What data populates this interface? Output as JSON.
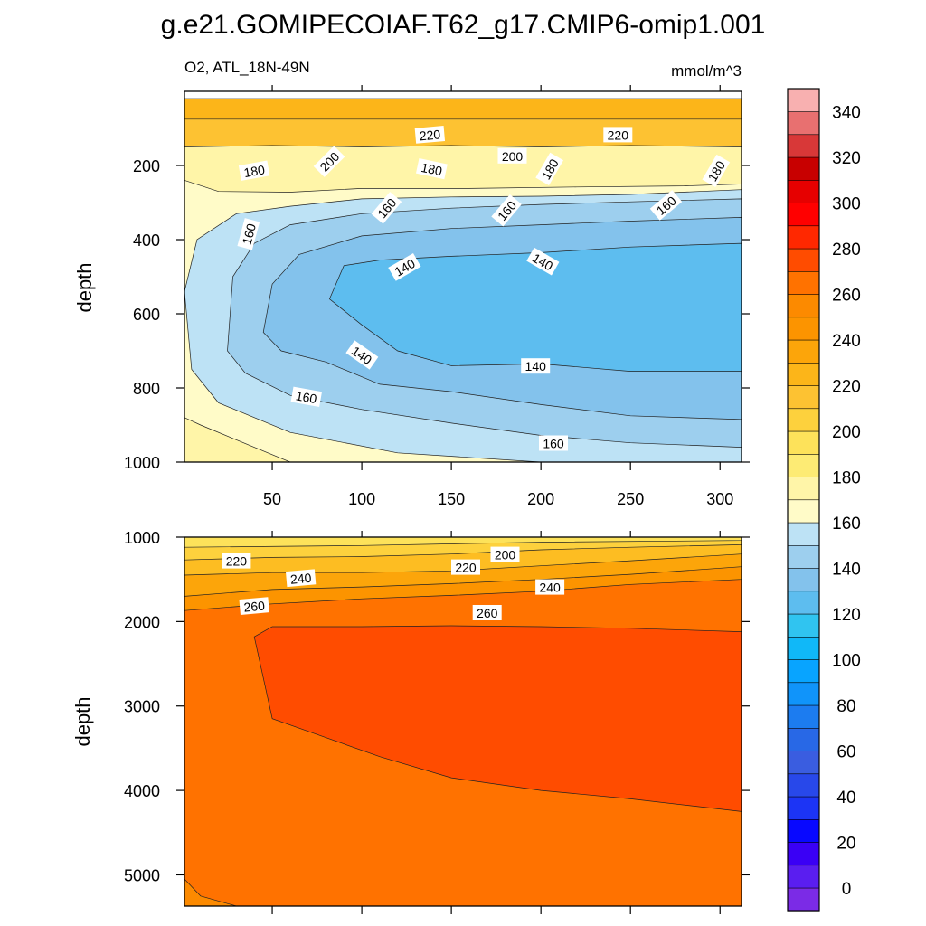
{
  "chart_data": {
    "type": "contour",
    "title": "g.e21.GOMIPECOIAF.T62_g17.CMIP6-omip1.001",
    "subtitle_left": "O2, ATL_18N-49N",
    "subtitle_right": "mmol/m^3",
    "ylabel": "depth",
    "x_ticks": [
      50,
      100,
      150,
      200,
      250,
      300
    ],
    "xlim": [
      1,
      312
    ],
    "panels": [
      {
        "name": "upper",
        "ylim": [
          0,
          1000
        ],
        "y_ticks": [
          200,
          400,
          600,
          800,
          1000
        ],
        "regions": [
          {
            "level": 180,
            "color": "#fff5a8",
            "points": [
              [
                1,
                20
              ],
              [
                312,
                20
              ],
              [
                312,
                1000
              ],
              [
                1,
                1000
              ]
            ]
          },
          {
            "level": 170,
            "color": "#fffbc8",
            "points": [
              [
                1,
                240
              ],
              [
                20,
                270
              ],
              [
                60,
                272
              ],
              [
                100,
                262
              ],
              [
                160,
                262
              ],
              [
                220,
                258
              ],
              [
                280,
                255
              ],
              [
                312,
                250
              ],
              [
                312,
                1000
              ],
              [
                60,
                1000
              ],
              [
                10,
                900
              ],
              [
                1,
                880
              ]
            ]
          },
          {
            "level": 160,
            "color": "#bde2f5",
            "points": [
              [
                1,
                540
              ],
              [
                8,
                400
              ],
              [
                30,
                330
              ],
              [
                60,
                310
              ],
              [
                100,
                290
              ],
              [
                150,
                285
              ],
              [
                200,
                283
              ],
              [
                250,
                278
              ],
              [
                312,
                265
              ],
              [
                312,
                1000
              ],
              [
                200,
                1000
              ],
              [
                120,
                975
              ],
              [
                60,
                920
              ],
              [
                20,
                840
              ],
              [
                5,
                750
              ]
            ]
          },
          {
            "level": 150,
            "color": "#9dcfee",
            "points": [
              [
                25,
                700
              ],
              [
                28,
                500
              ],
              [
                40,
                410
              ],
              [
                60,
                360
              ],
              [
                100,
                330
              ],
              [
                150,
                315
              ],
              [
                200,
                305
              ],
              [
                250,
                298
              ],
              [
                312,
                290
              ],
              [
                312,
                960
              ],
              [
                250,
                948
              ],
              [
                200,
                928
              ],
              [
                150,
                895
              ],
              [
                100,
                858
              ],
              [
                60,
                820
              ],
              [
                35,
                760
              ]
            ]
          },
          {
            "level": 140,
            "color": "#83c2ec",
            "points": [
              [
                45,
                650
              ],
              [
                50,
                520
              ],
              [
                65,
                440
              ],
              [
                100,
                390
              ],
              [
                150,
                370
              ],
              [
                200,
                360
              ],
              [
                250,
                350
              ],
              [
                312,
                340
              ],
              [
                312,
                885
              ],
              [
                250,
                875
              ],
              [
                200,
                845
              ],
              [
                150,
                810
              ],
              [
                110,
                790
              ],
              [
                80,
                730
              ],
              [
                55,
                700
              ]
            ]
          },
          {
            "level": 130,
            "color": "#5dbdef",
            "points": [
              [
                82,
                560
              ],
              [
                90,
                470
              ],
              [
                110,
                455
              ],
              [
                150,
                445
              ],
              [
                200,
                435
              ],
              [
                250,
                420
              ],
              [
                312,
                410
              ],
              [
                312,
                755
              ],
              [
                250,
                755
              ],
              [
                200,
                735
              ],
              [
                150,
                740
              ],
              [
                120,
                700
              ],
              [
                100,
                630
              ]
            ]
          },
          {
            "level": 220,
            "color": "#fdc232",
            "points": [
              [
                1,
                20
              ],
              [
                312,
                20
              ],
              [
                312,
                150
              ],
              [
                250,
                146
              ],
              [
                200,
                150
              ],
              [
                150,
                146
              ],
              [
                100,
                150
              ],
              [
                50,
                146
              ],
              [
                1,
                150
              ]
            ]
          },
          {
            "level": 225,
            "color": "#fcb519",
            "points": [
              [
                1,
                20
              ],
              [
                312,
                20
              ],
              [
                312,
                75
              ],
              [
                1,
                75
              ]
            ]
          }
        ],
        "labels": [
          {
            "text": "220",
            "x": 138,
            "y": 118,
            "angle": -5
          },
          {
            "text": "220",
            "x": 243,
            "y": 118,
            "angle": 0
          },
          {
            "text": "200",
            "x": 82,
            "y": 190,
            "angle": -45
          },
          {
            "text": "200",
            "x": 184,
            "y": 175,
            "angle": 0
          },
          {
            "text": "180",
            "x": 40,
            "y": 215,
            "angle": -10
          },
          {
            "text": "180",
            "x": 139,
            "y": 210,
            "angle": 12
          },
          {
            "text": "180",
            "x": 205,
            "y": 210,
            "angle": -60
          },
          {
            "text": "180",
            "x": 298,
            "y": 215,
            "angle": -60
          },
          {
            "text": "160",
            "x": 37,
            "y": 385,
            "angle": -75
          },
          {
            "text": "160",
            "x": 114,
            "y": 315,
            "angle": -50
          },
          {
            "text": "160",
            "x": 181,
            "y": 322,
            "angle": -50
          },
          {
            "text": "160",
            "x": 270,
            "y": 308,
            "angle": -40
          },
          {
            "text": "140",
            "x": 124,
            "y": 475,
            "angle": -30
          },
          {
            "text": "140",
            "x": 201,
            "y": 460,
            "angle": 30
          },
          {
            "text": "140",
            "x": 100,
            "y": 712,
            "angle": 35
          },
          {
            "text": "140",
            "x": 197,
            "y": 742,
            "angle": 0
          },
          {
            "text": "160",
            "x": 69,
            "y": 825,
            "angle": 10
          },
          {
            "text": "160",
            "x": 207,
            "y": 950,
            "angle": 0
          }
        ]
      },
      {
        "name": "lower",
        "ylim": [
          1000,
          5370
        ],
        "y_ticks": [
          1000,
          2000,
          3000,
          4000,
          5000
        ],
        "regions": [
          {
            "level": 265,
            "color": "#ff7200",
            "points": [
              [
                1,
                1000
              ],
              [
                312,
                1000
              ],
              [
                312,
                5370
              ],
              [
                1,
                5370
              ]
            ]
          },
          {
            "level": 250,
            "color": "#fc9400",
            "points": [
              [
                1,
                1000
              ],
              [
                312,
                1000
              ],
              [
                312,
                1500
              ],
              [
                250,
                1560
              ],
              [
                200,
                1640
              ],
              [
                150,
                1690
              ],
              [
                100,
                1730
              ],
              [
                50,
                1790
              ],
              [
                1,
                1870
              ]
            ]
          },
          {
            "level": 240,
            "color": "#fca50a",
            "points": [
              [
                1,
                1000
              ],
              [
                312,
                1000
              ],
              [
                312,
                1350
              ],
              [
                250,
                1440
              ],
              [
                200,
                1500
              ],
              [
                150,
                1550
              ],
              [
                100,
                1590
              ],
              [
                50,
                1620
              ],
              [
                1,
                1700
              ]
            ]
          },
          {
            "level": 230,
            "color": "#fdbd22",
            "points": [
              [
                1,
                1000
              ],
              [
                312,
                1000
              ],
              [
                312,
                1200
              ],
              [
                250,
                1280
              ],
              [
                200,
                1340
              ],
              [
                150,
                1400
              ],
              [
                100,
                1420
              ],
              [
                50,
                1420
              ],
              [
                1,
                1450
              ]
            ]
          },
          {
            "level": 215,
            "color": "#fdd13d",
            "points": [
              [
                1,
                1000
              ],
              [
                312,
                1000
              ],
              [
                312,
                1090
              ],
              [
                250,
                1120
              ],
              [
                200,
                1150
              ],
              [
                150,
                1200
              ],
              [
                100,
                1230
              ],
              [
                50,
                1240
              ],
              [
                1,
                1270
              ]
            ]
          },
          {
            "level": 205,
            "color": "#fde25a",
            "points": [
              [
                1,
                1000
              ],
              [
                312,
                1000
              ],
              [
                312,
                1040
              ],
              [
                200,
                1060
              ],
              [
                100,
                1100
              ],
              [
                1,
                1120
              ]
            ]
          },
          {
            "level": 270,
            "color": "#ff4c00",
            "points": [
              [
                40,
                2180
              ],
              [
                50,
                2060
              ],
              [
                100,
                2060
              ],
              [
                150,
                2050
              ],
              [
                200,
                2060
              ],
              [
                250,
                2080
              ],
              [
                312,
                2120
              ],
              [
                312,
                4250
              ],
              [
                250,
                4100
              ],
              [
                200,
                4000
              ],
              [
                150,
                3850
              ],
              [
                110,
                3600
              ],
              [
                70,
                3300
              ],
              [
                50,
                3150
              ]
            ]
          },
          {
            "level": 260,
            "color": "#fc8a00",
            "points": [
              [
                1,
                5050
              ],
              [
                1,
                5370
              ],
              [
                30,
                5370
              ],
              [
                10,
                5250
              ]
            ]
          }
        ],
        "labels": [
          {
            "text": "220",
            "x": 30,
            "y": 1285,
            "angle": 0
          },
          {
            "text": "200",
            "x": 180,
            "y": 1210,
            "angle": 0
          },
          {
            "text": "220",
            "x": 158,
            "y": 1360,
            "angle": 0
          },
          {
            "text": "240",
            "x": 66,
            "y": 1490,
            "angle": -5
          },
          {
            "text": "240",
            "x": 205,
            "y": 1595,
            "angle": 0
          },
          {
            "text": "260",
            "x": 40,
            "y": 1820,
            "angle": -5
          },
          {
            "text": "260",
            "x": 170,
            "y": 1900,
            "angle": 0
          }
        ]
      }
    ],
    "colorbar": {
      "levels": [
        0,
        10,
        20,
        30,
        40,
        50,
        60,
        70,
        80,
        90,
        100,
        110,
        120,
        130,
        140,
        150,
        160,
        170,
        180,
        190,
        200,
        210,
        220,
        230,
        240,
        250,
        260,
        270,
        280,
        290,
        300,
        310,
        320,
        330,
        340,
        350
      ],
      "labels": [
        0,
        20,
        40,
        60,
        80,
        100,
        120,
        140,
        160,
        180,
        200,
        220,
        240,
        260,
        280,
        300,
        320,
        340
      ],
      "colors": [
        "#7b2be6",
        "#5a1ef0",
        "#3a00f5",
        "#0808ff",
        "#1c34f5",
        "#2848ea",
        "#3a5de0",
        "#2868e6",
        "#1c7cf0",
        "#1094fa",
        "#08a4ff",
        "#10b8f8",
        "#30c4f0",
        "#5dbdef",
        "#83c2ec",
        "#9dcfee",
        "#bde2f5",
        "#fffbc8",
        "#fff5a8",
        "#fdeb74",
        "#fde25a",
        "#fdd13d",
        "#fdc232",
        "#fcb519",
        "#fca50a",
        "#fc9400",
        "#fc8a00",
        "#ff7200",
        "#ff4c00",
        "#ff2800",
        "#ff0000",
        "#e60000",
        "#c80000",
        "#d83838",
        "#e87070",
        "#f8b0b0"
      ]
    }
  }
}
